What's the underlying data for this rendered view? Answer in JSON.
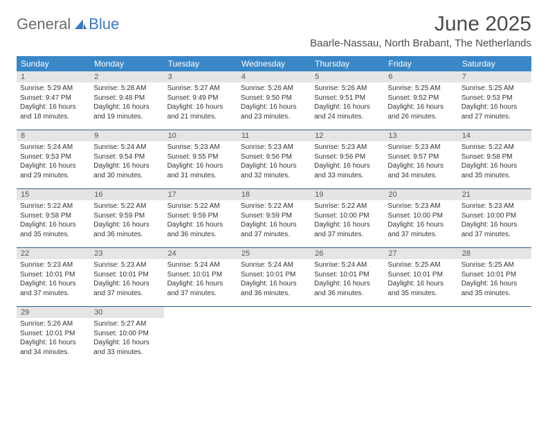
{
  "logo": {
    "general": "General",
    "blue": "Blue"
  },
  "title": "June 2025",
  "location": "Baarle-Nassau, North Brabant, The Netherlands",
  "colors": {
    "header_bg": "#3a87c7",
    "header_text": "#ffffff",
    "daynum_bg": "#e5e5e5",
    "rule": "#2f5f8f",
    "body_text": "#333333",
    "title_text": "#4a4a4a",
    "logo_blue": "#3a7ac0",
    "logo_gray": "#6a6a6a"
  },
  "weekdays": [
    "Sunday",
    "Monday",
    "Tuesday",
    "Wednesday",
    "Thursday",
    "Friday",
    "Saturday"
  ],
  "weeks": [
    [
      {
        "n": "1",
        "sr": "Sunrise: 5:29 AM",
        "ss": "Sunset: 9:47 PM",
        "d1": "Daylight: 16 hours",
        "d2": "and 18 minutes."
      },
      {
        "n": "2",
        "sr": "Sunrise: 5:28 AM",
        "ss": "Sunset: 9:48 PM",
        "d1": "Daylight: 16 hours",
        "d2": "and 19 minutes."
      },
      {
        "n": "3",
        "sr": "Sunrise: 5:27 AM",
        "ss": "Sunset: 9:49 PM",
        "d1": "Daylight: 16 hours",
        "d2": "and 21 minutes."
      },
      {
        "n": "4",
        "sr": "Sunrise: 5:26 AM",
        "ss": "Sunset: 9:50 PM",
        "d1": "Daylight: 16 hours",
        "d2": "and 23 minutes."
      },
      {
        "n": "5",
        "sr": "Sunrise: 5:26 AM",
        "ss": "Sunset: 9:51 PM",
        "d1": "Daylight: 16 hours",
        "d2": "and 24 minutes."
      },
      {
        "n": "6",
        "sr": "Sunrise: 5:25 AM",
        "ss": "Sunset: 9:52 PM",
        "d1": "Daylight: 16 hours",
        "d2": "and 26 minutes."
      },
      {
        "n": "7",
        "sr": "Sunrise: 5:25 AM",
        "ss": "Sunset: 9:53 PM",
        "d1": "Daylight: 16 hours",
        "d2": "and 27 minutes."
      }
    ],
    [
      {
        "n": "8",
        "sr": "Sunrise: 5:24 AM",
        "ss": "Sunset: 9:53 PM",
        "d1": "Daylight: 16 hours",
        "d2": "and 29 minutes."
      },
      {
        "n": "9",
        "sr": "Sunrise: 5:24 AM",
        "ss": "Sunset: 9:54 PM",
        "d1": "Daylight: 16 hours",
        "d2": "and 30 minutes."
      },
      {
        "n": "10",
        "sr": "Sunrise: 5:23 AM",
        "ss": "Sunset: 9:55 PM",
        "d1": "Daylight: 16 hours",
        "d2": "and 31 minutes."
      },
      {
        "n": "11",
        "sr": "Sunrise: 5:23 AM",
        "ss": "Sunset: 9:56 PM",
        "d1": "Daylight: 16 hours",
        "d2": "and 32 minutes."
      },
      {
        "n": "12",
        "sr": "Sunrise: 5:23 AM",
        "ss": "Sunset: 9:56 PM",
        "d1": "Daylight: 16 hours",
        "d2": "and 33 minutes."
      },
      {
        "n": "13",
        "sr": "Sunrise: 5:23 AM",
        "ss": "Sunset: 9:57 PM",
        "d1": "Daylight: 16 hours",
        "d2": "and 34 minutes."
      },
      {
        "n": "14",
        "sr": "Sunrise: 5:22 AM",
        "ss": "Sunset: 9:58 PM",
        "d1": "Daylight: 16 hours",
        "d2": "and 35 minutes."
      }
    ],
    [
      {
        "n": "15",
        "sr": "Sunrise: 5:22 AM",
        "ss": "Sunset: 9:58 PM",
        "d1": "Daylight: 16 hours",
        "d2": "and 35 minutes."
      },
      {
        "n": "16",
        "sr": "Sunrise: 5:22 AM",
        "ss": "Sunset: 9:59 PM",
        "d1": "Daylight: 16 hours",
        "d2": "and 36 minutes."
      },
      {
        "n": "17",
        "sr": "Sunrise: 5:22 AM",
        "ss": "Sunset: 9:59 PM",
        "d1": "Daylight: 16 hours",
        "d2": "and 36 minutes."
      },
      {
        "n": "18",
        "sr": "Sunrise: 5:22 AM",
        "ss": "Sunset: 9:59 PM",
        "d1": "Daylight: 16 hours",
        "d2": "and 37 minutes."
      },
      {
        "n": "19",
        "sr": "Sunrise: 5:22 AM",
        "ss": "Sunset: 10:00 PM",
        "d1": "Daylight: 16 hours",
        "d2": "and 37 minutes."
      },
      {
        "n": "20",
        "sr": "Sunrise: 5:23 AM",
        "ss": "Sunset: 10:00 PM",
        "d1": "Daylight: 16 hours",
        "d2": "and 37 minutes."
      },
      {
        "n": "21",
        "sr": "Sunrise: 5:23 AM",
        "ss": "Sunset: 10:00 PM",
        "d1": "Daylight: 16 hours",
        "d2": "and 37 minutes."
      }
    ],
    [
      {
        "n": "22",
        "sr": "Sunrise: 5:23 AM",
        "ss": "Sunset: 10:01 PM",
        "d1": "Daylight: 16 hours",
        "d2": "and 37 minutes."
      },
      {
        "n": "23",
        "sr": "Sunrise: 5:23 AM",
        "ss": "Sunset: 10:01 PM",
        "d1": "Daylight: 16 hours",
        "d2": "and 37 minutes."
      },
      {
        "n": "24",
        "sr": "Sunrise: 5:24 AM",
        "ss": "Sunset: 10:01 PM",
        "d1": "Daylight: 16 hours",
        "d2": "and 37 minutes."
      },
      {
        "n": "25",
        "sr": "Sunrise: 5:24 AM",
        "ss": "Sunset: 10:01 PM",
        "d1": "Daylight: 16 hours",
        "d2": "and 36 minutes."
      },
      {
        "n": "26",
        "sr": "Sunrise: 5:24 AM",
        "ss": "Sunset: 10:01 PM",
        "d1": "Daylight: 16 hours",
        "d2": "and 36 minutes."
      },
      {
        "n": "27",
        "sr": "Sunrise: 5:25 AM",
        "ss": "Sunset: 10:01 PM",
        "d1": "Daylight: 16 hours",
        "d2": "and 35 minutes."
      },
      {
        "n": "28",
        "sr": "Sunrise: 5:25 AM",
        "ss": "Sunset: 10:01 PM",
        "d1": "Daylight: 16 hours",
        "d2": "and 35 minutes."
      }
    ],
    [
      {
        "n": "29",
        "sr": "Sunrise: 5:26 AM",
        "ss": "Sunset: 10:01 PM",
        "d1": "Daylight: 16 hours",
        "d2": "and 34 minutes."
      },
      {
        "n": "30",
        "sr": "Sunrise: 5:27 AM",
        "ss": "Sunset: 10:00 PM",
        "d1": "Daylight: 16 hours",
        "d2": "and 33 minutes."
      },
      {
        "n": "",
        "sr": "",
        "ss": "",
        "d1": "",
        "d2": ""
      },
      {
        "n": "",
        "sr": "",
        "ss": "",
        "d1": "",
        "d2": ""
      },
      {
        "n": "",
        "sr": "",
        "ss": "",
        "d1": "",
        "d2": ""
      },
      {
        "n": "",
        "sr": "",
        "ss": "",
        "d1": "",
        "d2": ""
      },
      {
        "n": "",
        "sr": "",
        "ss": "",
        "d1": "",
        "d2": ""
      }
    ]
  ]
}
